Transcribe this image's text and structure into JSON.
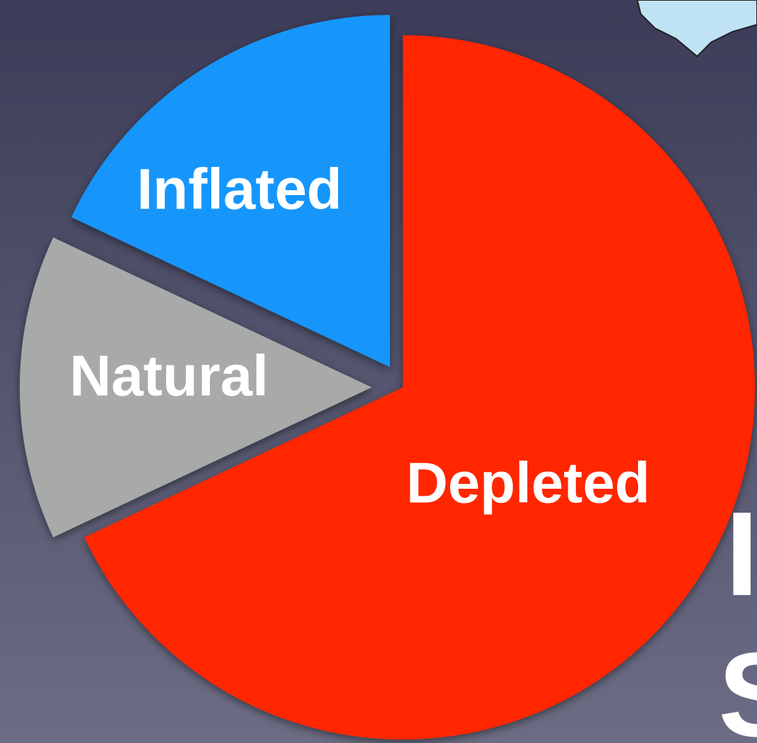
{
  "chart_data": {
    "type": "pie",
    "categories": [
      "Depleted",
      "Natural",
      "Inflated"
    ],
    "values": [
      68,
      14,
      18
    ],
    "colors": [
      "#ff2600",
      "#a7aaa9",
      "#1696fb"
    ],
    "annotations": [
      "I",
      "S"
    ]
  }
}
